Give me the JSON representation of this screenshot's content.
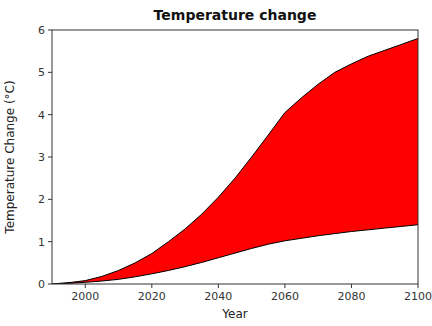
{
  "chart_data": {
    "type": "range_area",
    "title": "Temperature change",
    "xlabel": "Year",
    "ylabel": "Temperature Change (°C)",
    "xlim": [
      1990,
      2100
    ],
    "ylim": [
      0,
      6
    ],
    "xticks": [
      2000,
      2020,
      2040,
      2060,
      2080,
      2100
    ],
    "yticks": [
      0,
      1,
      2,
      3,
      4,
      5,
      6
    ],
    "x": [
      1990,
      1993,
      1996,
      2000,
      2005,
      2010,
      2015,
      2020,
      2025,
      2030,
      2035,
      2040,
      2045,
      2050,
      2055,
      2060,
      2065,
      2070,
      2075,
      2080,
      2085,
      2090,
      2095,
      2100
    ],
    "color": "#FF0000",
    "grid": false,
    "series": [
      {
        "color": "#000000",
        "values": [
          0.0,
          0.02,
          0.04,
          0.08,
          0.18,
          0.32,
          0.5,
          0.72,
          1.0,
          1.3,
          1.65,
          2.05,
          2.5,
          3.0,
          3.52,
          4.05,
          4.4,
          4.72,
          5.0,
          5.2,
          5.38,
          5.52,
          5.66,
          5.8
        ]
      },
      {
        "color": "#000000",
        "values": [
          0.0,
          0.01,
          0.02,
          0.04,
          0.07,
          0.11,
          0.17,
          0.24,
          0.32,
          0.41,
          0.51,
          0.62,
          0.73,
          0.84,
          0.94,
          1.02,
          1.08,
          1.14,
          1.19,
          1.24,
          1.28,
          1.32,
          1.36,
          1.4
        ]
      }
    ]
  }
}
